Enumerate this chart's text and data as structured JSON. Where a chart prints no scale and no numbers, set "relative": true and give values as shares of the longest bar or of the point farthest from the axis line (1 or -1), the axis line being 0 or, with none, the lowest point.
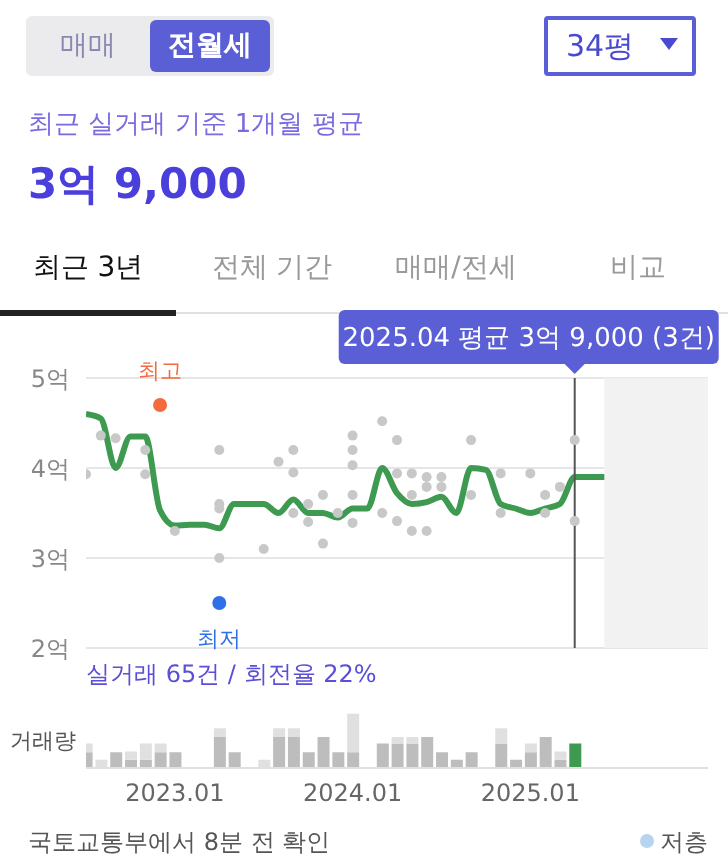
{
  "chart_data": [
    {
      "type": "line",
      "title": "최근 실거래 기준 1개월 평균",
      "subtitle": "3억 9,000",
      "x": [
        "2022-07",
        "2022-08",
        "2022-09",
        "2022-10",
        "2022-11",
        "2022-12",
        "2023-01",
        "2023-02",
        "2023-03",
        "2023-04",
        "2023-05",
        "2023-06",
        "2023-07",
        "2023-08",
        "2023-09",
        "2023-10",
        "2023-11",
        "2023-12",
        "2024-01",
        "2024-02",
        "2024-03",
        "2024-04",
        "2024-05",
        "2024-06",
        "2024-07",
        "2024-08",
        "2024-09",
        "2024-10",
        "2024-11",
        "2024-12",
        "2025-01",
        "2025-02",
        "2025-03",
        "2025-04",
        "2025-05",
        "2025-06"
      ],
      "series": [
        {
          "type": "line",
          "color": "#3d9a50",
          "values": [
            4.6,
            4.55,
            4.0,
            4.35,
            4.35,
            3.53,
            3.36,
            3.37,
            3.37,
            3.33,
            3.6,
            3.6,
            3.6,
            3.5,
            3.65,
            3.5,
            3.5,
            3.45,
            3.55,
            3.55,
            4.0,
            3.72,
            3.6,
            3.62,
            3.68,
            3.5,
            4.0,
            3.98,
            3.6,
            3.55,
            3.5,
            3.55,
            3.6,
            3.9,
            3.9,
            3.9
          ]
        },
        {
          "type": "scatter",
          "color": "#c8c8c8",
          "x": [
            "2022-07",
            "2022-08",
            "2022-09",
            "2022-11",
            "2022-11",
            "2023-01",
            "2023-04",
            "2023-04",
            "2023-04",
            "2023-04",
            "2023-07",
            "2023-08",
            "2023-09",
            "2023-09",
            "2023-09",
            "2023-10",
            "2023-10",
            "2023-11",
            "2023-11",
            "2023-12",
            "2024-01",
            "2024-01",
            "2024-01",
            "2024-01",
            "2024-01",
            "2024-03",
            "2024-03",
            "2024-04",
            "2024-04",
            "2024-04",
            "2024-05",
            "2024-05",
            "2024-05",
            "2024-06",
            "2024-06",
            "2024-06",
            "2024-07",
            "2024-07",
            "2024-09",
            "2024-09",
            "2024-11",
            "2024-11",
            "2025-01",
            "2025-02",
            "2025-02",
            "2025-03",
            "2025-04",
            "2025-04"
          ],
          "values": [
            3.93,
            4.36,
            4.33,
            4.2,
            3.93,
            3.3,
            4.2,
            3.6,
            3.55,
            3.0,
            3.1,
            4.07,
            4.2,
            3.95,
            3.5,
            3.6,
            3.4,
            3.7,
            3.16,
            3.5,
            4.36,
            4.2,
            4.03,
            3.7,
            3.39,
            4.52,
            3.5,
            4.31,
            3.94,
            3.41,
            3.94,
            3.7,
            3.3,
            3.9,
            3.79,
            3.3,
            3.9,
            3.79,
            4.31,
            3.7,
            3.94,
            3.5,
            3.94,
            3.7,
            3.5,
            3.79,
            4.31,
            3.41
          ]
        }
      ],
      "xlim": [
        "2022-07",
        "2026-01"
      ],
      "ylim": [
        2,
        5
      ],
      "yticks": [
        {
          "value": 2,
          "label": "2억"
        },
        {
          "value": 3,
          "label": "3억"
        },
        {
          "value": 4,
          "label": "4억"
        },
        {
          "value": 5,
          "label": "5억"
        }
      ],
      "tick_labels": "y",
      "grid": "y",
      "ref_lines": [
        {
          "axis": "x",
          "value": "2025-04",
          "label": "2025.04 평균 3억 9,000 (3건)",
          "color": "#555555"
        }
      ],
      "bands": [
        {
          "axis": "x",
          "from": "2025-06",
          "to": "2026-01",
          "color": "#f2f2f2"
        }
      ],
      "annotations": [
        "매매",
        "전월세",
        "34평",
        "최근 3년",
        "전체 기간",
        "매매/전세",
        "비교",
        {
          "text": "최고",
          "x": "2022-12",
          "y": 4.7
        },
        {
          "text": "최저",
          "x": "2023-04",
          "y": 2.5
        },
        "국토교통부에서 8분 전 확인",
        "저층"
      ]
    },
    {
      "type": "bar",
      "stacked": true,
      "relative": true,
      "ylabel": "거래량",
      "x": [
        "2022-07",
        "2022-08",
        "2022-09",
        "2022-10",
        "2022-11",
        "2022-12",
        "2023-01",
        "2023-04",
        "2023-05",
        "2023-07",
        "2023-08",
        "2023-09",
        "2023-10",
        "2023-11",
        "2023-12",
        "2024-01",
        "2024-03",
        "2024-04",
        "2024-05",
        "2024-06",
        "2024-07",
        "2024-08",
        "2024-09",
        "2024-11",
        "2024-12",
        "2025-01",
        "2025-02",
        "2025-03",
        "2025-04"
      ],
      "series": [
        {
          "colors": [
            "#bdbdbd",
            "#bdbdbd",
            "#bdbdbd",
            "#bdbdbd",
            "#bdbdbd",
            "#bdbdbd",
            "#bdbdbd",
            "#bdbdbd",
            "#bdbdbd",
            "#bdbdbd",
            "#bdbdbd",
            "#bdbdbd",
            "#bdbdbd",
            "#bdbdbd",
            "#bdbdbd",
            "#bdbdbd",
            "#bdbdbd",
            "#bdbdbd",
            "#bdbdbd",
            "#bdbdbd",
            "#bdbdbd",
            "#bdbdbd",
            "#bdbdbd",
            "#bdbdbd",
            "#bdbdbd",
            "#bdbdbd",
            "#bdbdbd",
            "#bdbdbd",
            "#3d9a50"
          ],
          "values": [
            0.29,
            0,
            0.29,
            0.15,
            0.15,
            0.29,
            0.29,
            0.57,
            0.29,
            0,
            0.57,
            0.57,
            0.29,
            0.57,
            0.29,
            0.29,
            0.45,
            0.45,
            0.45,
            0.57,
            0.29,
            0.15,
            0.29,
            0.45,
            0.15,
            0.29,
            0.57,
            0.15,
            0.45
          ]
        },
        {
          "color": "#e0e0e0",
          "values": [
            0.16,
            0.15,
            0,
            0.15,
            0.3,
            0.16,
            0,
            0.16,
            0,
            0.15,
            0.16,
            0.16,
            0,
            0,
            0,
            0.71,
            0,
            0.12,
            0.12,
            0,
            0,
            0,
            0,
            0.28,
            0,
            0.16,
            0,
            0.15,
            0
          ]
        }
      ],
      "xlim": [
        "2022-07",
        "2026-01"
      ],
      "xticks": [
        {
          "value": "2023-01",
          "label": "2023.01"
        },
        {
          "value": "2024-01",
          "label": "2024.01"
        },
        {
          "value": "2025-01",
          "label": "2025.01"
        }
      ],
      "tick_labels": "x",
      "annotations": [
        "실거래 65건 / 회전율 22%"
      ]
    }
  ]
}
